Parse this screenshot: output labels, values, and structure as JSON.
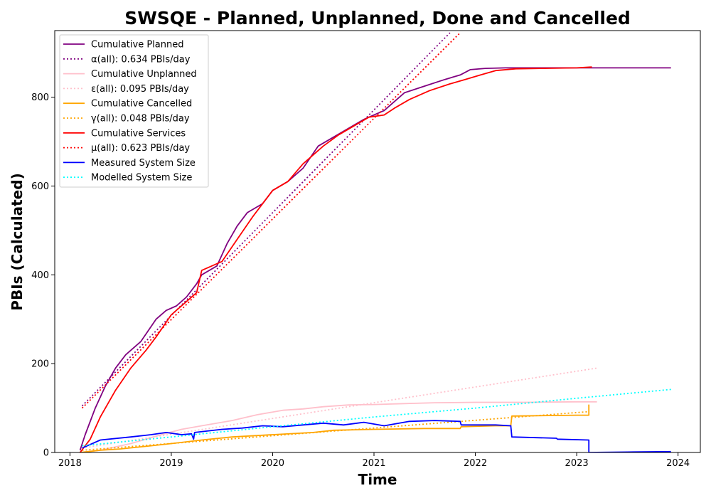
{
  "chart_data": {
    "type": "line",
    "title": "SWSQE - Planned, Unplanned, Done  and Cancelled",
    "xlabel": "Time",
    "ylabel": "PBIs (Calculated)",
    "xlim": [
      2017.85,
      2024.22
    ],
    "ylim": [
      0,
      950
    ],
    "x_ticks": [
      2018,
      2019,
      2020,
      2021,
      2022,
      2023,
      2024
    ],
    "y_ticks": [
      0,
      200,
      400,
      600,
      800
    ],
    "grid": false,
    "legend_position": "top-left",
    "series": [
      {
        "name": "Cumulative Planned",
        "style": "solid",
        "color": "#800080",
        "x": [
          2018.1,
          2018.15,
          2018.25,
          2018.35,
          2018.45,
          2018.55,
          2018.7,
          2018.85,
          2018.95,
          2019.05,
          2019.15,
          2019.25,
          2019.3,
          2019.45,
          2019.55,
          2019.65,
          2019.75,
          2019.9,
          2020.0,
          2020.15,
          2020.3,
          2020.45,
          2020.6,
          2020.75,
          2020.9,
          2021.0,
          2021.1,
          2021.2,
          2021.3,
          2021.5,
          2021.7,
          2021.85,
          2021.95,
          2022.1,
          2022.3,
          2023.0,
          2023.93
        ],
        "y": [
          5,
          40,
          100,
          150,
          190,
          220,
          250,
          300,
          320,
          330,
          350,
          380,
          400,
          420,
          470,
          510,
          540,
          560,
          590,
          610,
          640,
          690,
          710,
          730,
          750,
          760,
          770,
          790,
          810,
          825,
          840,
          850,
          862,
          865,
          866,
          866,
          866
        ]
      },
      {
        "name": "α(all): 0.634 PBIs/day",
        "style": "dotted",
        "color": "#800080",
        "x": [
          2018.12,
          2021.75
        ],
        "y": [
          105,
          945
        ]
      },
      {
        "name": "Cumulative Unplanned",
        "style": "solid",
        "color": "#ffc0cb",
        "x": [
          2018.1,
          2018.3,
          2018.6,
          2018.9,
          2019.1,
          2019.35,
          2019.6,
          2019.85,
          2020.1,
          2020.3,
          2020.5,
          2020.75,
          2021.0,
          2021.3,
          2021.6,
          2022.0,
          2022.5,
          2023.0,
          2023.2
        ],
        "y": [
          0,
          5,
          20,
          40,
          52,
          62,
          72,
          85,
          95,
          98,
          103,
          107,
          108,
          110,
          112,
          113,
          113,
          114,
          114
        ]
      },
      {
        "name": "ε(all): 0.095 PBIs/day",
        "style": "dotted",
        "color": "#ffc0cb",
        "x": [
          2018.12,
          2023.2
        ],
        "y": [
          10,
          190
        ]
      },
      {
        "name": "Cumulative Cancelled",
        "style": "solid",
        "color": "#ffa500",
        "x": [
          2018.1,
          2018.3,
          2018.5,
          2018.8,
          2019.0,
          2019.3,
          2019.6,
          2020.0,
          2020.4,
          2020.6,
          2021.0,
          2021.5,
          2021.85,
          2021.86,
          2022.2,
          2022.35,
          2022.36,
          2023.0,
          2023.12,
          2023.12
        ],
        "y": [
          0,
          5,
          8,
          15,
          20,
          28,
          35,
          40,
          45,
          50,
          52,
          54,
          54,
          58,
          60,
          60,
          82,
          84,
          84,
          108
        ]
      },
      {
        "name": "γ(all): 0.048 PBIs/day",
        "style": "dotted",
        "color": "#ffa500",
        "x": [
          2018.12,
          2023.12
        ],
        "y": [
          5,
          92
        ]
      },
      {
        "name": "Cumulative Services",
        "style": "solid",
        "color": "#ff0000",
        "x": [
          2018.1,
          2018.2,
          2018.3,
          2018.45,
          2018.6,
          2018.75,
          2018.85,
          2019.0,
          2019.15,
          2019.25,
          2019.3,
          2019.5,
          2019.65,
          2019.8,
          2020.0,
          2020.15,
          2020.3,
          2020.5,
          2020.65,
          2020.8,
          2020.95,
          2021.1,
          2021.2,
          2021.35,
          2021.55,
          2021.75,
          2021.9,
          2022.05,
          2022.2,
          2022.4,
          2023.0,
          2023.15
        ],
        "y": [
          0,
          30,
          80,
          140,
          190,
          230,
          260,
          310,
          340,
          360,
          410,
          430,
          480,
          530,
          590,
          610,
          650,
          690,
          715,
          735,
          755,
          760,
          775,
          795,
          815,
          830,
          840,
          850,
          860,
          864,
          866,
          868
        ]
      },
      {
        "name": "μ(all): 0.623 PBIs/day",
        "style": "dotted",
        "color": "#ff0000",
        "x": [
          2018.12,
          2021.85
        ],
        "y": [
          100,
          945
        ]
      },
      {
        "name": "Measured System Size",
        "style": "solid",
        "color": "#0000ff",
        "x": [
          2018.12,
          2018.3,
          2018.6,
          2018.8,
          2018.95,
          2019.1,
          2019.2,
          2019.22,
          2019.23,
          2019.5,
          2019.7,
          2019.9,
          2020.1,
          2020.3,
          2020.5,
          2020.7,
          2020.9,
          2021.1,
          2021.35,
          2021.6,
          2021.85,
          2021.86,
          2022.2,
          2022.35,
          2022.36,
          2022.8,
          2022.81,
          2023.12,
          2023.12,
          2023.5,
          2023.93
        ],
        "y": [
          10,
          28,
          35,
          40,
          45,
          40,
          42,
          30,
          45,
          52,
          55,
          60,
          58,
          62,
          66,
          62,
          68,
          60,
          70,
          72,
          70,
          62,
          62,
          60,
          35,
          32,
          30,
          28,
          0,
          1,
          2
        ]
      },
      {
        "name": "Modelled System Size",
        "style": "dotted",
        "color": "#00ffff",
        "x": [
          2018.12,
          2019.0,
          2020.0,
          2021.0,
          2022.0,
          2023.0,
          2023.93
        ],
        "y": [
          15,
          35,
          58,
          80,
          100,
          122,
          142
        ]
      }
    ]
  }
}
